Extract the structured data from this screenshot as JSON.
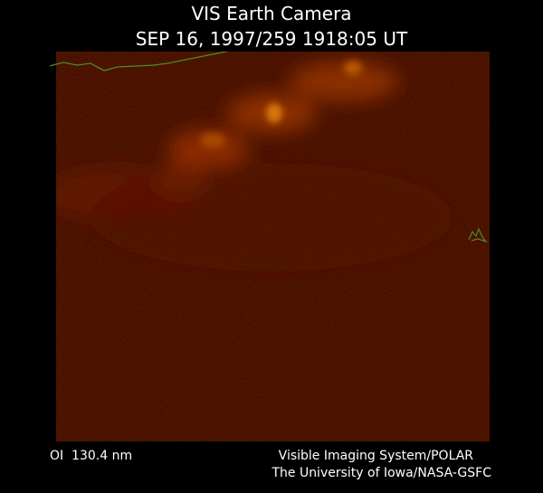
{
  "header": {
    "title": "VIS Earth Camera",
    "subtitle": "SEP 16, 1997/259 1918:05 UT"
  },
  "footer": {
    "filter": "OI  130.4 nm",
    "instrument": "Visible Imaging System/POLAR",
    "institution": "The University of Iowa/NASA-GSFC"
  }
}
